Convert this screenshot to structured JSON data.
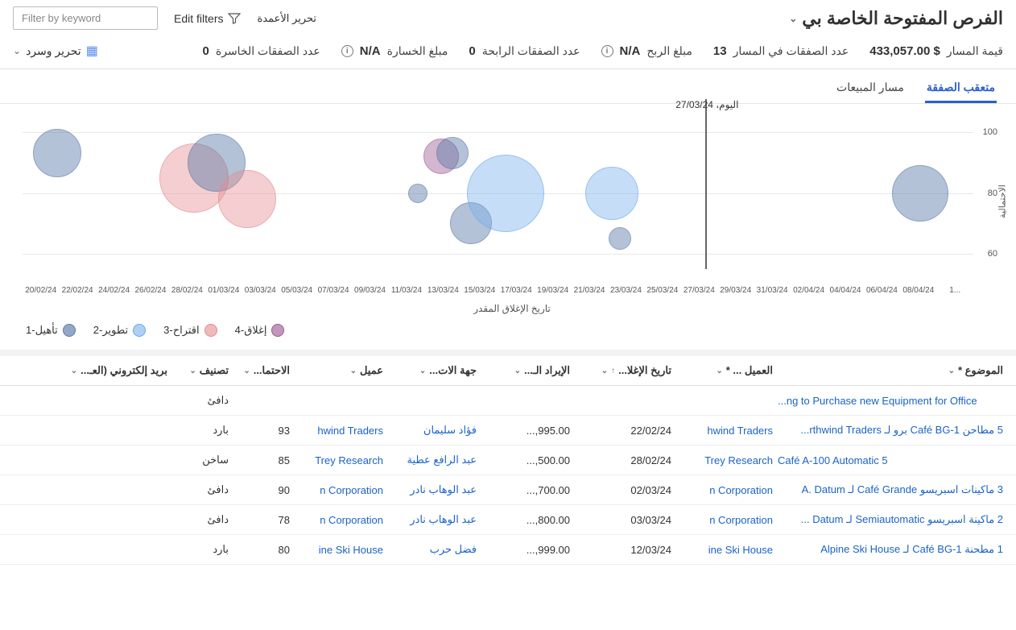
{
  "header": {
    "view_title": "الفرص المفتوحة الخاصة بي",
    "edit_columns": "تحرير الأعمدة",
    "edit_filters": "Edit filters",
    "filter_placeholder": "Filter by keyword"
  },
  "metrics": {
    "items": [
      {
        "label": "قيمة المسار",
        "value": "$ 433,057.00",
        "info": false
      },
      {
        "label": "عدد الصفقات في المسار",
        "value": "13",
        "info": false
      },
      {
        "label": "مبلغ الربح",
        "value": "N/A",
        "info": true
      },
      {
        "label": "عدد الصفقات الرابحة",
        "value": "0",
        "info": false
      },
      {
        "label": "مبلغ الخسارة",
        "value": "N/A",
        "info": true
      },
      {
        "label": "عدد الصفقات الخاسرة",
        "value": "0",
        "info": false
      }
    ],
    "edit_narrate": "تحرير وسرد"
  },
  "tabs": {
    "items": [
      {
        "label": "متعقب الصفقة",
        "active": true
      },
      {
        "label": "مسار المبيعات",
        "active": false
      }
    ]
  },
  "chart": {
    "yaxis_label": "الاحتمالية",
    "xaxis_label": "تاريخ الإغلاق المقدر",
    "y_ticks": [
      60,
      80,
      100
    ],
    "y_min": 55,
    "y_max": 105,
    "x_ticks": [
      "20/02/24",
      "22/02/24",
      "24/02/24",
      "26/02/24",
      "28/02/24",
      "01/03/24",
      "03/03/24",
      "05/03/24",
      "07/03/24",
      "09/03/24",
      "11/03/24",
      "13/03/24",
      "15/03/24",
      "17/03/24",
      "19/03/24",
      "21/03/24",
      "23/03/24",
      "25/03/24",
      "27/03/24",
      "29/03/24",
      "31/03/24",
      "02/04/24",
      "04/04/24",
      "06/04/24",
      "08/04/24",
      "1..."
    ],
    "x_min": 0,
    "x_max": 25,
    "today_label": "اليوم، 27/03/24",
    "today_x": 18,
    "bubbles": [
      {
        "x": 0.9,
        "y": 93,
        "r": 30,
        "series": 0
      },
      {
        "x": 4.5,
        "y": 85,
        "r": 43,
        "series": 2
      },
      {
        "x": 5.1,
        "y": 90,
        "r": 36,
        "series": 0
      },
      {
        "x": 5.9,
        "y": 78,
        "r": 36,
        "series": 2
      },
      {
        "x": 10.4,
        "y": 80,
        "r": 12,
        "series": 0
      },
      {
        "x": 11.0,
        "y": 92,
        "r": 22,
        "series": 3
      },
      {
        "x": 11.3,
        "y": 93,
        "r": 20,
        "series": 0
      },
      {
        "x": 11.8,
        "y": 70,
        "r": 26,
        "series": 0
      },
      {
        "x": 12.7,
        "y": 80,
        "r": 48,
        "series": 1
      },
      {
        "x": 15.5,
        "y": 80,
        "r": 33,
        "series": 1
      },
      {
        "x": 15.7,
        "y": 65,
        "r": 14,
        "series": 0
      },
      {
        "x": 23.6,
        "y": 80,
        "r": 35,
        "series": 0
      }
    ],
    "series": [
      {
        "label": "تأهيل-1",
        "color": "#5b7aa8",
        "fill": "rgba(91,122,168,0.65)"
      },
      {
        "label": "تطوير-2",
        "color": "#6aa8ea",
        "fill": "rgba(122,176,236,0.60)"
      },
      {
        "label": "اقتراح-3",
        "color": "#e08a8f",
        "fill": "rgba(230,140,145,0.60)"
      },
      {
        "label": "إغلاق-4",
        "color": "#9e5a94",
        "fill": "rgba(160,95,150,0.65)"
      }
    ]
  },
  "table": {
    "columns": [
      "الموضوع *",
      "العميل ... *",
      "تاريخ الإغلا...",
      "الإيراد الـ...",
      "جهة الات...",
      "عميل",
      "الاحتما...",
      "تصنيف",
      "بريد إلكتروني (العـ..."
    ],
    "sort_col": 2,
    "sort_dir": "↑",
    "rows": [
      {
        "subject": "...ng to Purchase new Equipment for Office",
        "customer": "",
        "close_date": "",
        "revenue": "",
        "contact": "",
        "agent": "",
        "prob": "",
        "rating": "دافئ",
        "email": ""
      },
      {
        "subject": "5 مطاحن Café BG-1 برو لـ ‎rthwind Traders...",
        "customer": "hwind Traders",
        "close_date": "22/02/24",
        "revenue": "...,995.00",
        "contact": "فؤاد سليمان",
        "agent": "hwind Traders",
        "prob": "93",
        "rating": "بارد",
        "email": ""
      },
      {
        "subject": "Café A-100 Automatic 5",
        "customer": "Trey Research",
        "close_date": "28/02/24",
        "revenue": "...,500.00",
        "contact": "عبد الرافع عطية",
        "agent": "Trey Research",
        "prob": "85",
        "rating": "ساخن",
        "email": ""
      },
      {
        "subject": "3 ماكينات اسبريسو Café Grande لـ A. Datum",
        "customer": "n Corporation",
        "close_date": "02/03/24",
        "revenue": "...,700.00",
        "contact": "عبد الوهاب نادر",
        "agent": "n Corporation",
        "prob": "90",
        "rating": "دافئ",
        "email": ""
      },
      {
        "subject": "2 ماكينة اسبريسو Semiautomatic لـ Datum ...",
        "customer": "n Corporation",
        "close_date": "03/03/24",
        "revenue": "...,800.00",
        "contact": "عبد الوهاب نادر",
        "agent": "n Corporation",
        "prob": "78",
        "rating": "دافئ",
        "email": ""
      },
      {
        "subject": "1 مطحنة Café BG-1 لـ Alpine Ski House",
        "customer": "ine Ski House",
        "close_date": "12/03/24",
        "revenue": "...,999.00",
        "contact": "فضل حرب",
        "agent": "ine Ski House",
        "prob": "80",
        "rating": "بارد",
        "email": ""
      }
    ]
  }
}
